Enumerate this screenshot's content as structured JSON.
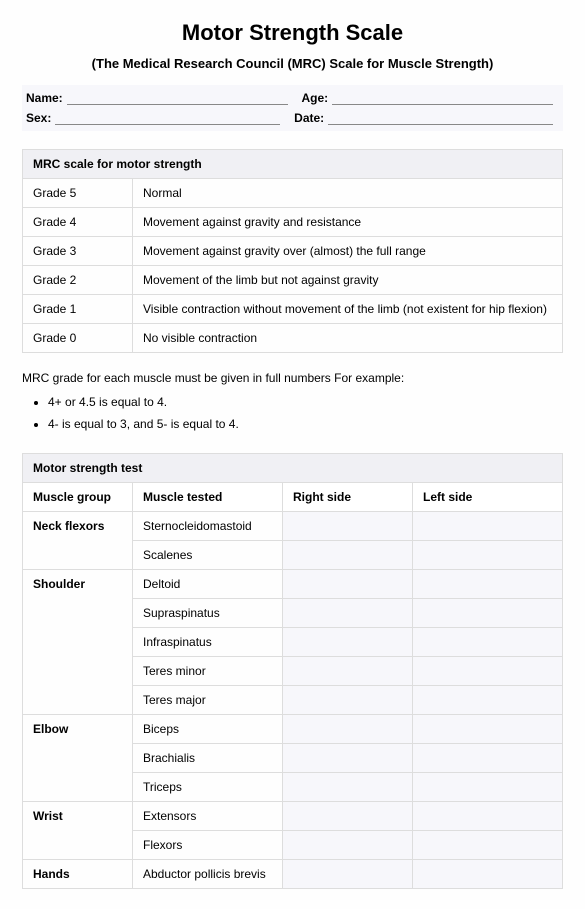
{
  "title": "Motor Strength Scale",
  "subtitle": "(The Medical Research Council (MRC) Scale for Muscle Strength)",
  "info": {
    "name_label": "Name:",
    "age_label": "Age:",
    "sex_label": "Sex:",
    "date_label": "Date:"
  },
  "scale_table": {
    "header": "MRC scale for motor strength",
    "rows": [
      {
        "grade": "Grade 5",
        "desc": "Normal"
      },
      {
        "grade": "Grade 4",
        "desc": "Movement against gravity and resistance"
      },
      {
        "grade": "Grade 3",
        "desc": "Movement against gravity over (almost) the full range"
      },
      {
        "grade": "Grade 2",
        "desc": "Movement of the limb but not against gravity"
      },
      {
        "grade": "Grade 1",
        "desc": "Visible contraction without movement of the limb (not existent for hip flexion)"
      },
      {
        "grade": "Grade 0",
        "desc": "No visible contraction"
      }
    ]
  },
  "note_text": "MRC grade for each muscle must be given in full numbers For example:",
  "bullets": [
    "4+ or 4.5 is equal to 4.",
    "4- is equal to 3, and 5- is equal to 4."
  ],
  "test_table": {
    "header": "Motor strength test",
    "columns": {
      "group": "Muscle group",
      "muscle": "Muscle tested",
      "right": "Right side",
      "left": "Left side"
    },
    "groups": [
      {
        "name": "Neck flexors",
        "muscles": [
          "Sternocleidomastoid",
          "Scalenes"
        ]
      },
      {
        "name": "Shoulder",
        "muscles": [
          "Deltoid",
          "Supraspinatus",
          "Infraspinatus",
          "Teres minor",
          "Teres major"
        ]
      },
      {
        "name": "Elbow",
        "muscles": [
          "Biceps",
          "Brachialis",
          "Triceps"
        ]
      },
      {
        "name": "Wrist",
        "muscles": [
          "Extensors",
          "Flexors"
        ]
      },
      {
        "name": "Hands",
        "muscles": [
          "Abductor pollicis brevis"
        ]
      }
    ]
  },
  "colors": {
    "header_bg": "#f0f0f4",
    "input_bg": "#f7f7fb",
    "border": "#dddddd",
    "underline": "#888888"
  }
}
